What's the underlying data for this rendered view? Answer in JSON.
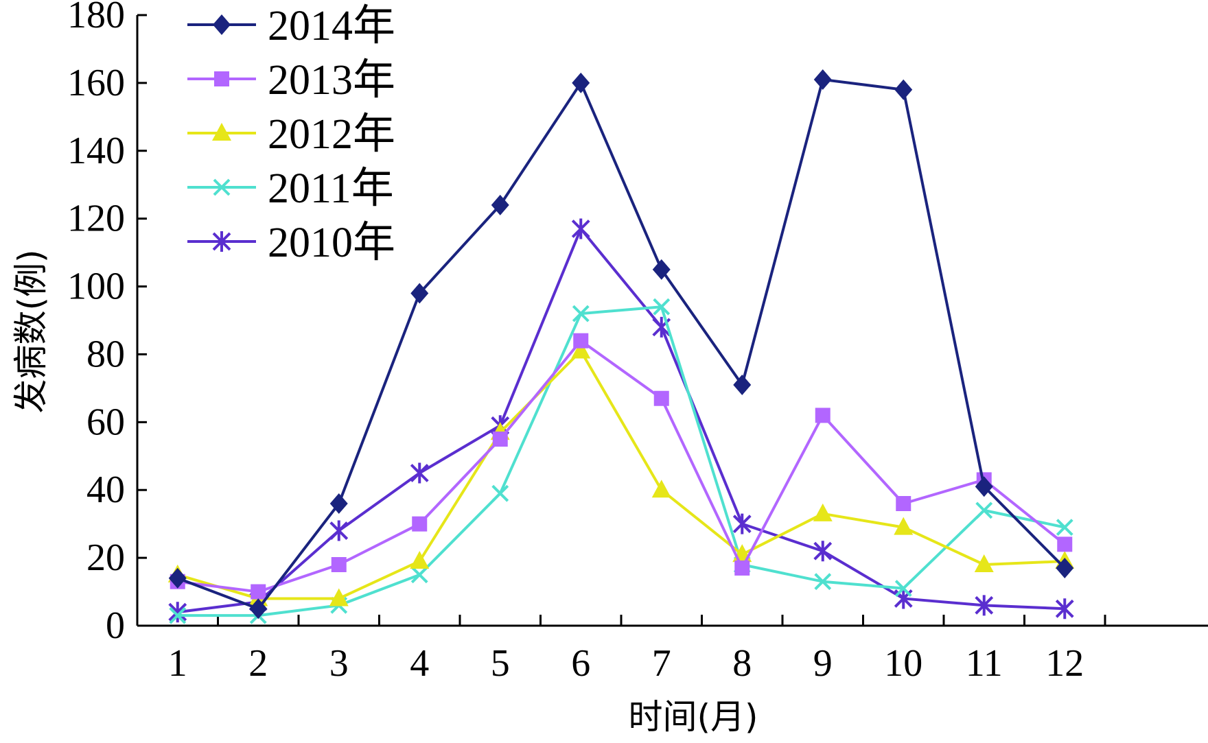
{
  "chart_data": {
    "type": "line",
    "xlabel": "时间(月)",
    "ylabel": "发病数(例)",
    "ylim": [
      0,
      180
    ],
    "yticks": [
      "0",
      "20",
      "40",
      "60",
      "80",
      "100",
      "120",
      "140",
      "160",
      "180"
    ],
    "categories": [
      "1",
      "2",
      "3",
      "4",
      "5",
      "6",
      "7",
      "8",
      "9",
      "10",
      "11",
      "12"
    ],
    "legend_position": "top-left",
    "grid": false,
    "series": [
      {
        "name": "2014年",
        "marker": "diamond",
        "color": "#1a237e",
        "values": [
          14,
          5,
          36,
          98,
          124,
          160,
          105,
          71,
          161,
          158,
          41,
          17
        ]
      },
      {
        "name": "2013年",
        "marker": "square",
        "color": "#b266ff",
        "values": [
          13,
          10,
          18,
          30,
          55,
          84,
          67,
          17,
          62,
          36,
          43,
          24
        ]
      },
      {
        "name": "2012年",
        "marker": "triangle",
        "color": "#e6e619",
        "values": [
          15,
          8,
          8,
          19,
          57,
          81,
          40,
          21,
          33,
          29,
          18,
          19
        ]
      },
      {
        "name": "2011年",
        "marker": "x",
        "color": "#4fe0cf",
        "values": [
          3,
          3,
          6,
          15,
          39,
          92,
          94,
          18,
          13,
          11,
          34,
          29
        ]
      },
      {
        "name": "2010年",
        "marker": "star",
        "color": "#5a2ecf",
        "values": [
          4,
          7,
          28,
          45,
          59,
          117,
          88,
          30,
          22,
          8,
          6,
          5
        ]
      }
    ]
  }
}
